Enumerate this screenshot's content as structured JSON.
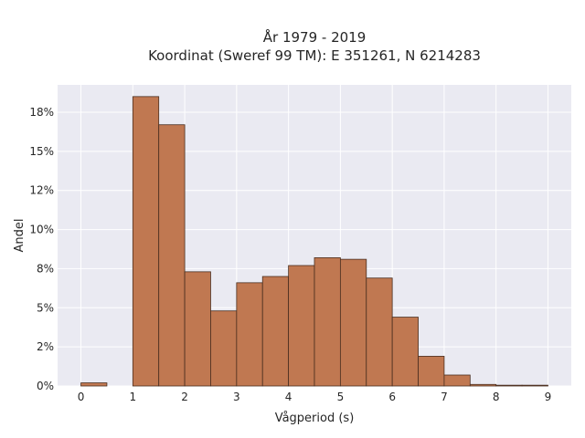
{
  "chart_data": {
    "type": "bar",
    "title_line1": "År 1979 - 2019",
    "title_line2": "Koordinat (Sweref 99 TM): E 351261, N 6214283",
    "xlabel": "Vågperiod (s)",
    "ylabel": "Andel",
    "bin_width": 0.5,
    "bins": [
      {
        "x0": 0.0,
        "value": 0.2
      },
      {
        "x0": 0.5,
        "value": 0.0
      },
      {
        "x0": 1.0,
        "value": 18.5
      },
      {
        "x0": 1.5,
        "value": 16.7
      },
      {
        "x0": 2.0,
        "value": 7.3
      },
      {
        "x0": 2.5,
        "value": 4.8
      },
      {
        "x0": 3.0,
        "value": 6.6
      },
      {
        "x0": 3.5,
        "value": 7.0
      },
      {
        "x0": 4.0,
        "value": 7.7
      },
      {
        "x0": 4.5,
        "value": 8.2
      },
      {
        "x0": 5.0,
        "value": 8.1
      },
      {
        "x0": 5.5,
        "value": 6.9
      },
      {
        "x0": 6.0,
        "value": 4.4
      },
      {
        "x0": 6.5,
        "value": 1.9
      },
      {
        "x0": 7.0,
        "value": 0.7
      },
      {
        "x0": 7.5,
        "value": 0.1
      },
      {
        "x0": 8.0,
        "value": 0.05
      },
      {
        "x0": 8.5,
        "value": 0.05
      }
    ],
    "xlim": [
      -0.45,
      9.45
    ],
    "ylim": [
      0,
      19.25
    ],
    "xticks": [
      0,
      1,
      2,
      3,
      4,
      5,
      6,
      7,
      8,
      9
    ],
    "yticks": [
      {
        "value": 0,
        "label": "0%"
      },
      {
        "value": 2.5,
        "label": "2%"
      },
      {
        "value": 5,
        "label": "5%"
      },
      {
        "value": 7.5,
        "label": "8%"
      },
      {
        "value": 10,
        "label": "10%"
      },
      {
        "value": 12.5,
        "label": "12%"
      },
      {
        "value": 15,
        "label": "15%"
      },
      {
        "value": 17.5,
        "label": "18%"
      }
    ],
    "grid": true,
    "colors": {
      "bar_fill": "#c07851",
      "bar_stroke": "#4a2e1f",
      "plot_background": "#eaeaf2",
      "grid": "#ffffff"
    }
  }
}
